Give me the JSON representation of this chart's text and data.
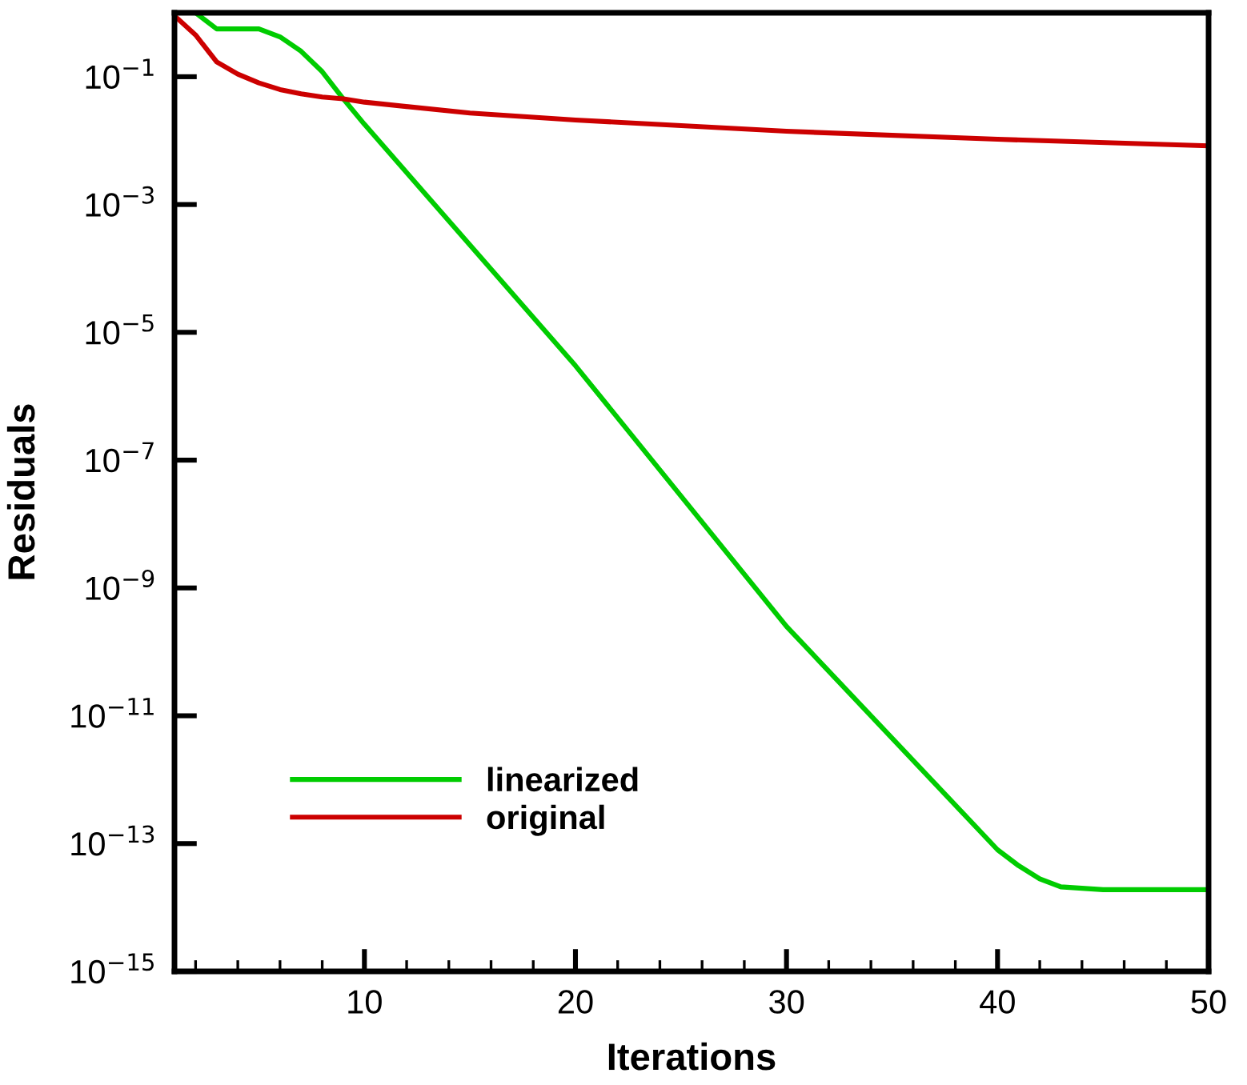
{
  "chart_data": {
    "type": "line",
    "xlabel": "Iterations",
    "ylabel": "Residuals",
    "log": "y",
    "xlim": [
      1,
      50
    ],
    "xticks": [
      10,
      20,
      30,
      40,
      50
    ],
    "ylim": [
      1e-15,
      1
    ],
    "yticks": [
      {
        "value": 1e-15,
        "label": "10$^{−15}$"
      },
      {
        "value": 1e-13,
        "label": "10$^{−13}$"
      },
      {
        "value": 1e-11,
        "label": "10$^{−11}$"
      },
      {
        "value": 1e-09,
        "label": "10$^{−9}$"
      },
      {
        "value": 1e-07,
        "label": "10$^{−7}$"
      },
      {
        "value": 1e-05,
        "label": "10$^{−5}$"
      },
      {
        "value": 0.001,
        "label": "10$^{−3}$"
      },
      {
        "value": 0.1,
        "label": "10$^{−1}$"
      }
    ],
    "grid": false,
    "legend": "bottom left",
    "marker": "none",
    "line_style": "solid",
    "series": [
      {
        "name": "linearized",
        "color": "#00cc00",
        "x": [
          2,
          3,
          5,
          6,
          7,
          8,
          9,
          10,
          20,
          30,
          40,
          41,
          42,
          43,
          45,
          50
        ],
        "values": [
          1.0,
          0.56,
          0.56,
          0.42,
          0.25,
          0.12,
          0.045,
          0.018,
          3e-06,
          2.5e-10,
          8e-14,
          4.5e-14,
          2.8e-14,
          2.1e-14,
          1.9e-14,
          1.9e-14
        ]
      },
      {
        "name": "original",
        "color": "#cc0000",
        "x": [
          1,
          2,
          3,
          4,
          5,
          6,
          7,
          8,
          9,
          10,
          15,
          20,
          30,
          40,
          50
        ],
        "values": [
          0.9,
          0.45,
          0.17,
          0.11,
          0.08,
          0.063,
          0.054,
          0.048,
          0.045,
          0.04,
          0.027,
          0.021,
          0.014,
          0.0105,
          0.0083
        ]
      }
    ]
  }
}
